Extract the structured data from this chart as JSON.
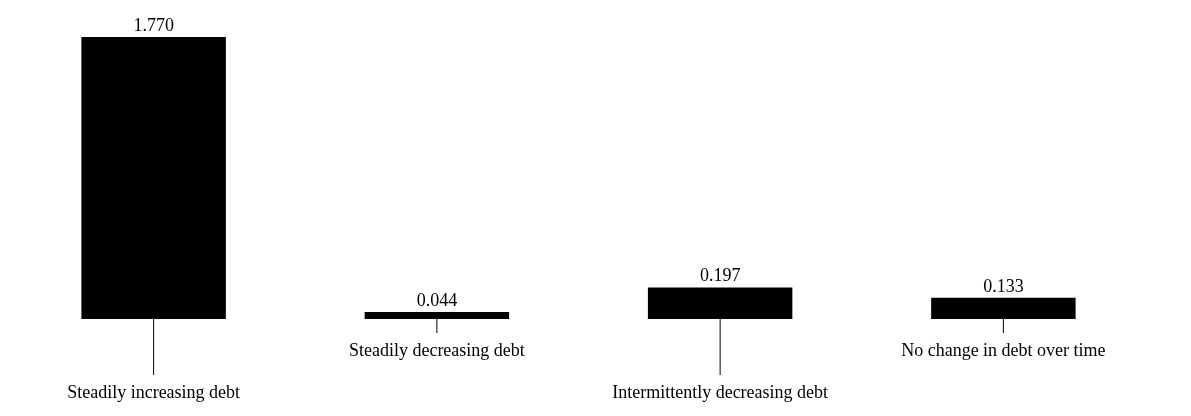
{
  "chart_data": {
    "type": "bar",
    "categories": [
      "Steadily increasing debt",
      "Steadily decreasing debt",
      "Intermittently decreasing debt",
      "No change in debt over time"
    ],
    "values": [
      1.77,
      0.044,
      0.197,
      0.133
    ],
    "value_labels": [
      "1.770",
      "0.044",
      "0.197",
      "0.133"
    ],
    "color": "#000000"
  }
}
